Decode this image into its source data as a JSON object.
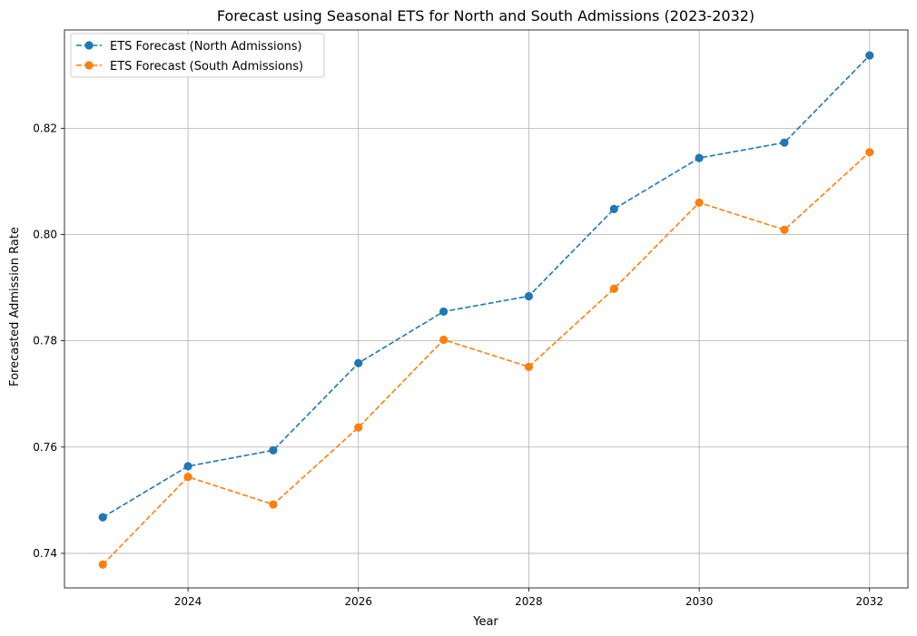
{
  "chart_data": {
    "type": "line",
    "title": "Forecast using Seasonal ETS for North and South Admissions (2023-2032)",
    "xlabel": "Year",
    "ylabel": "Forecasted Admission Rate",
    "x": [
      2023,
      2024,
      2025,
      2026,
      2027,
      2028,
      2029,
      2030,
      2031,
      2032
    ],
    "xlim": [
      2022.55,
      2032.45
    ],
    "ylim": [
      0.7335,
      0.8385
    ],
    "x_ticks": [
      2024,
      2026,
      2028,
      2030,
      2032
    ],
    "x_tick_labels": [
      "2024",
      "2026",
      "2028",
      "2030",
      "2032"
    ],
    "y_ticks": [
      0.74,
      0.76,
      0.78,
      0.8,
      0.82
    ],
    "y_tick_labels": [
      "0.74",
      "0.76",
      "0.78",
      "0.80",
      "0.82"
    ],
    "grid": true,
    "legend_position": "top-left",
    "series": [
      {
        "name": "ETS Forecast (North Admissions)",
        "color": "#1f77b4",
        "line_style": "dashed",
        "marker": "circle",
        "values": [
          0.7468,
          0.7564,
          0.7594,
          0.7758,
          0.7855,
          0.7884,
          0.8048,
          0.8144,
          0.8173,
          0.8337
        ]
      },
      {
        "name": "ETS Forecast (South Admissions)",
        "color": "#ff7f0e",
        "line_style": "dashed",
        "marker": "circle",
        "values": [
          0.7379,
          0.7544,
          0.7492,
          0.7637,
          0.7802,
          0.7751,
          0.7898,
          0.806,
          0.8009,
          0.8155
        ]
      }
    ]
  }
}
